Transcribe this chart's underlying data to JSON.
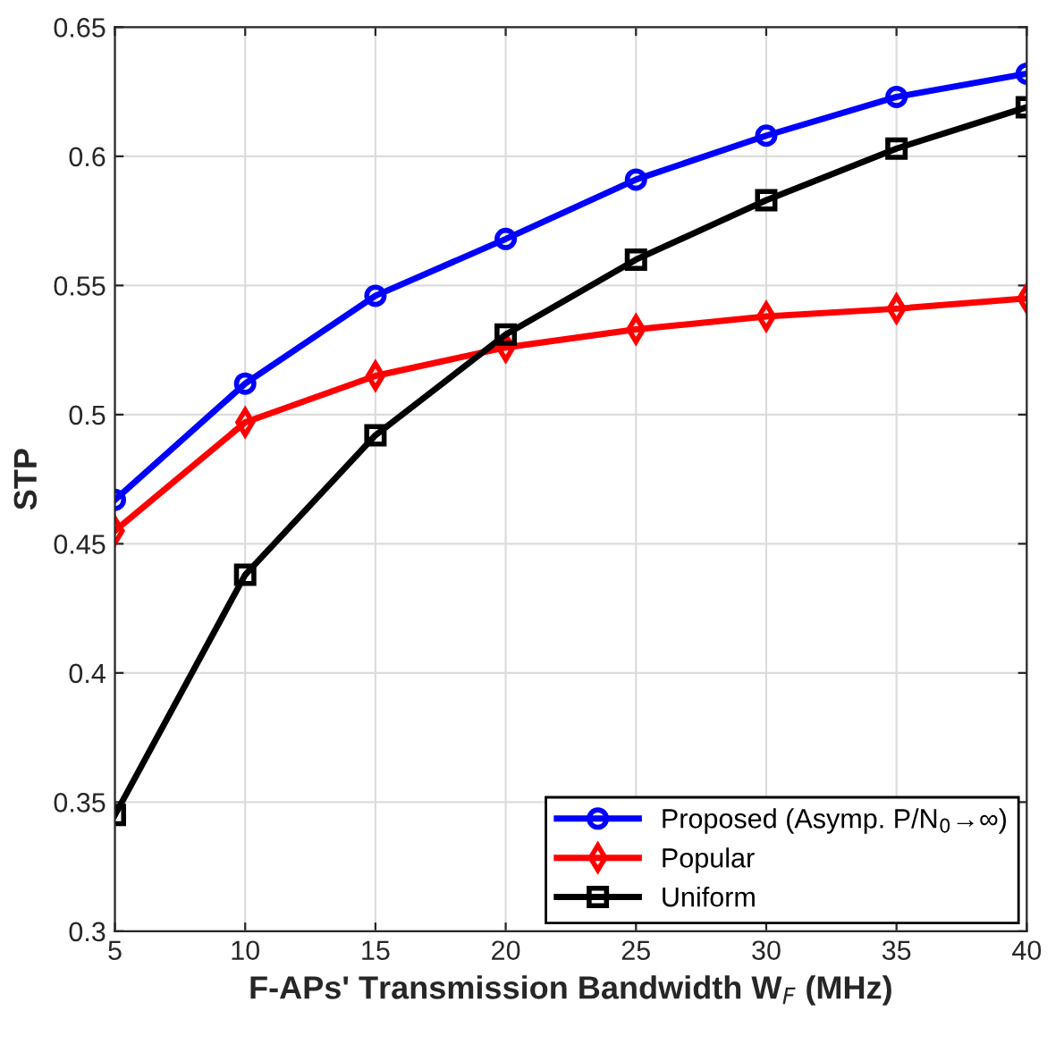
{
  "chart_data": {
    "type": "line",
    "xlabel": "F-APs' Transmission Bandwidth W$_{F}$ (MHz)",
    "ylabel": "STP",
    "x": [
      5,
      10,
      15,
      20,
      25,
      30,
      35,
      40
    ],
    "series": [
      {
        "name": "Proposed (Asymp. P/N$_{0}$→∞)",
        "color": "#0000ff",
        "marker": "circle",
        "values": [
          0.467,
          0.512,
          0.546,
          0.568,
          0.591,
          0.608,
          0.623,
          0.632
        ]
      },
      {
        "name": "Popular",
        "color": "#ff0000",
        "marker": "diamond",
        "values": [
          0.455,
          0.497,
          0.515,
          0.526,
          0.533,
          0.538,
          0.541,
          0.545
        ]
      },
      {
        "name": "Uniform",
        "color": "#000000",
        "marker": "square",
        "values": [
          0.345,
          0.438,
          0.492,
          0.531,
          0.56,
          0.583,
          0.603,
          0.619
        ]
      }
    ],
    "xlim": [
      5,
      40
    ],
    "xticks": [
      5,
      10,
      15,
      20,
      25,
      30,
      35,
      40
    ],
    "ylim": [
      0.3,
      0.65
    ],
    "yticks": [
      0.3,
      0.35,
      0.4,
      0.45,
      0.5,
      0.55,
      0.6,
      0.65
    ],
    "grid": true,
    "legend": "bottom right",
    "line_style": "solid"
  }
}
